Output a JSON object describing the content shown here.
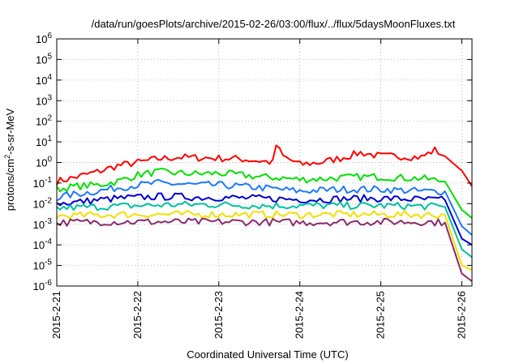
{
  "chart_data": {
    "type": "line",
    "title": "/data/run/goesPlots/archive/2015-02-26/03:00/flux/../flux/5daysMoonFluxes.txt",
    "xlabel": "Coordinated Universal Time (UTC)",
    "ylabel_parts": {
      "pre": "protons/cm",
      "sup": "2",
      "post": "-s-sr-MeV"
    },
    "y_scale": "log",
    "ylim_exp": [
      -6,
      6
    ],
    "y_ticks": [
      {
        "base": "10",
        "exp": "6"
      },
      {
        "base": "10",
        "exp": "5"
      },
      {
        "base": "10",
        "exp": "4"
      },
      {
        "base": "10",
        "exp": "3"
      },
      {
        "base": "10",
        "exp": "2"
      },
      {
        "base": "10",
        "exp": "1"
      },
      {
        "base": "10",
        "exp": "0"
      },
      {
        "base": "10",
        "exp": "-1"
      },
      {
        "base": "10",
        "exp": "-2"
      },
      {
        "base": "10",
        "exp": "-3"
      },
      {
        "base": "10",
        "exp": "-4"
      },
      {
        "base": "10",
        "exp": "-5"
      },
      {
        "base": "10",
        "exp": "-6"
      }
    ],
    "x_range_days": [
      "2015-2-21",
      "2015-2-26 03:00"
    ],
    "x_ticks": [
      "2015-2-21",
      "2015-2-22",
      "2015-2-23",
      "2015-2-24",
      "2015-2-25",
      "2015-2-26"
    ],
    "grid": true,
    "legend": "none",
    "series": [
      {
        "color": "#ff0000",
        "points": [
          [
            "2015-2-21 00:00",
            0.12
          ],
          [
            "2015-2-21 06:00",
            0.2
          ],
          [
            "2015-2-21 12:00",
            0.35
          ],
          [
            "2015-2-21 18:00",
            0.7
          ],
          [
            "2015-2-22 00:00",
            1.0
          ],
          [
            "2015-2-22 06:00",
            1.5
          ],
          [
            "2015-2-22 12:00",
            1.8
          ],
          [
            "2015-2-22 18:00",
            1.7
          ],
          [
            "2015-2-23 00:00",
            1.6
          ],
          [
            "2015-2-23 06:00",
            1.5
          ],
          [
            "2015-2-23 12:00",
            1.2
          ],
          [
            "2015-2-23 16:00",
            1.0
          ],
          [
            "2015-2-23 17:00",
            7.0
          ],
          [
            "2015-2-23 19:00",
            2.0
          ],
          [
            "2015-2-24 00:00",
            0.8
          ],
          [
            "2015-2-24 06:00",
            1.0
          ],
          [
            "2015-2-24 12:00",
            1.6
          ],
          [
            "2015-2-24 18:00",
            3.0
          ],
          [
            "2015-2-25 00:00",
            2.0
          ],
          [
            "2015-2-25 06:00",
            2.0
          ],
          [
            "2015-2-25 12:00",
            1.8
          ],
          [
            "2015-2-25 16:00",
            4.0
          ],
          [
            "2015-2-25 19:00",
            2.0
          ],
          [
            "2015-2-26 00:00",
            0.4
          ],
          [
            "2015-2-26 03:00",
            0.07
          ]
        ]
      },
      {
        "color": "#00e000",
        "points": [
          [
            "2015-2-21 00:00",
            0.05
          ],
          [
            "2015-2-21 06:00",
            0.07
          ],
          [
            "2015-2-21 12:00",
            0.08
          ],
          [
            "2015-2-21 18:00",
            0.12
          ],
          [
            "2015-2-22 00:00",
            0.25
          ],
          [
            "2015-2-22 06:00",
            0.35
          ],
          [
            "2015-2-22 12:00",
            0.3
          ],
          [
            "2015-2-22 18:00",
            0.28
          ],
          [
            "2015-2-23 00:00",
            0.3
          ],
          [
            "2015-2-23 06:00",
            0.25
          ],
          [
            "2015-2-23 12:00",
            0.2
          ],
          [
            "2015-2-23 18:00",
            0.18
          ],
          [
            "2015-2-24 00:00",
            0.15
          ],
          [
            "2015-2-24 06:00",
            0.16
          ],
          [
            "2015-2-24 12:00",
            0.18
          ],
          [
            "2015-2-24 18:00",
            0.2
          ],
          [
            "2015-2-25 00:00",
            0.2
          ],
          [
            "2015-2-25 06:00",
            0.18
          ],
          [
            "2015-2-25 12:00",
            0.17
          ],
          [
            "2015-2-25 19:00",
            0.12
          ],
          [
            "2015-2-26 00:00",
            0.005
          ],
          [
            "2015-2-26 03:00",
            0.002
          ]
        ]
      },
      {
        "color": "#1e78ff",
        "points": [
          [
            "2015-2-21 00:00",
            0.02
          ],
          [
            "2015-2-21 06:00",
            0.03
          ],
          [
            "2015-2-21 12:00",
            0.04
          ],
          [
            "2015-2-21 18:00",
            0.06
          ],
          [
            "2015-2-22 00:00",
            0.08
          ],
          [
            "2015-2-22 06:00",
            0.1
          ],
          [
            "2015-2-22 12:00",
            0.09
          ],
          [
            "2015-2-22 18:00",
            0.08
          ],
          [
            "2015-2-23 00:00",
            0.08
          ],
          [
            "2015-2-23 06:00",
            0.07
          ],
          [
            "2015-2-23 12:00",
            0.06
          ],
          [
            "2015-2-23 18:00",
            0.05
          ],
          [
            "2015-2-24 00:00",
            0.04
          ],
          [
            "2015-2-24 06:00",
            0.045
          ],
          [
            "2015-2-24 12:00",
            0.05
          ],
          [
            "2015-2-24 18:00",
            0.05
          ],
          [
            "2015-2-25 00:00",
            0.05
          ],
          [
            "2015-2-25 06:00",
            0.045
          ],
          [
            "2015-2-25 12:00",
            0.04
          ],
          [
            "2015-2-25 19:00",
            0.04
          ],
          [
            "2015-2-26 00:00",
            0.0008
          ],
          [
            "2015-2-26 03:00",
            0.0003
          ]
        ]
      },
      {
        "color": "#0000d0",
        "points": [
          [
            "2015-2-21 00:00",
            0.01
          ],
          [
            "2015-2-21 06:00",
            0.012
          ],
          [
            "2015-2-21 12:00",
            0.015
          ],
          [
            "2015-2-21 18:00",
            0.018
          ],
          [
            "2015-2-22 00:00",
            0.02
          ],
          [
            "2015-2-22 06:00",
            0.022
          ],
          [
            "2015-2-22 12:00",
            0.022
          ],
          [
            "2015-2-22 18:00",
            0.02
          ],
          [
            "2015-2-23 00:00",
            0.02
          ],
          [
            "2015-2-23 06:00",
            0.019
          ],
          [
            "2015-2-23 12:00",
            0.018
          ],
          [
            "2015-2-23 18:00",
            0.017
          ],
          [
            "2015-2-24 00:00",
            0.016
          ],
          [
            "2015-2-24 06:00",
            0.016
          ],
          [
            "2015-2-24 12:00",
            0.017
          ],
          [
            "2015-2-24 18:00",
            0.018
          ],
          [
            "2015-2-25 00:00",
            0.018
          ],
          [
            "2015-2-25 06:00",
            0.017
          ],
          [
            "2015-2-25 12:00",
            0.016
          ],
          [
            "2015-2-25 19:00",
            0.015
          ],
          [
            "2015-2-26 00:00",
            0.0002
          ],
          [
            "2015-2-26 03:00",
            0.0001
          ]
        ]
      },
      {
        "color": "#00c0a0",
        "points": [
          [
            "2015-2-21 00:00",
            0.006
          ],
          [
            "2015-2-21 12:00",
            0.007
          ],
          [
            "2015-2-22 00:00",
            0.008
          ],
          [
            "2015-2-22 12:00",
            0.009
          ],
          [
            "2015-2-23 00:00",
            0.009
          ],
          [
            "2015-2-23 12:00",
            0.008
          ],
          [
            "2015-2-24 00:00",
            0.008
          ],
          [
            "2015-2-24 12:00",
            0.008
          ],
          [
            "2015-2-25 00:00",
            0.008
          ],
          [
            "2015-2-25 12:00",
            0.0075
          ],
          [
            "2015-2-25 19:00",
            0.007
          ],
          [
            "2015-2-26 00:00",
            6e-05
          ],
          [
            "2015-2-26 03:00",
            2.5e-05
          ]
        ]
      },
      {
        "color": "#f0e000",
        "points": [
          [
            "2015-2-21 00:00",
            0.0025
          ],
          [
            "2015-2-21 12:00",
            0.0028
          ],
          [
            "2015-2-22 00:00",
            0.003
          ],
          [
            "2015-2-22 12:00",
            0.003
          ],
          [
            "2015-2-23 00:00",
            0.003
          ],
          [
            "2015-2-23 12:00",
            0.003
          ],
          [
            "2015-2-24 00:00",
            0.0029
          ],
          [
            "2015-2-24 12:00",
            0.003
          ],
          [
            "2015-2-25 00:00",
            0.003
          ],
          [
            "2015-2-25 12:00",
            0.0029
          ],
          [
            "2015-2-25 19:00",
            0.0028
          ],
          [
            "2015-2-26 00:00",
            1e-05
          ],
          [
            "2015-2-26 03:00",
            6e-06
          ]
        ]
      },
      {
        "color": "#8b2a6a",
        "points": [
          [
            "2015-2-21 00:00",
            0.0012
          ],
          [
            "2015-2-21 12:00",
            0.0013
          ],
          [
            "2015-2-22 00:00",
            0.0013
          ],
          [
            "2015-2-22 12:00",
            0.0013
          ],
          [
            "2015-2-23 00:00",
            0.0013
          ],
          [
            "2015-2-23 12:00",
            0.0013
          ],
          [
            "2015-2-24 00:00",
            0.0012
          ],
          [
            "2015-2-24 12:00",
            0.0013
          ],
          [
            "2015-2-25 00:00",
            0.0013
          ],
          [
            "2015-2-25 12:00",
            0.0013
          ],
          [
            "2015-2-25 19:00",
            0.0012
          ],
          [
            "2015-2-26 00:00",
            4e-06
          ],
          [
            "2015-2-26 03:00",
            1.7e-06
          ]
        ]
      }
    ]
  }
}
